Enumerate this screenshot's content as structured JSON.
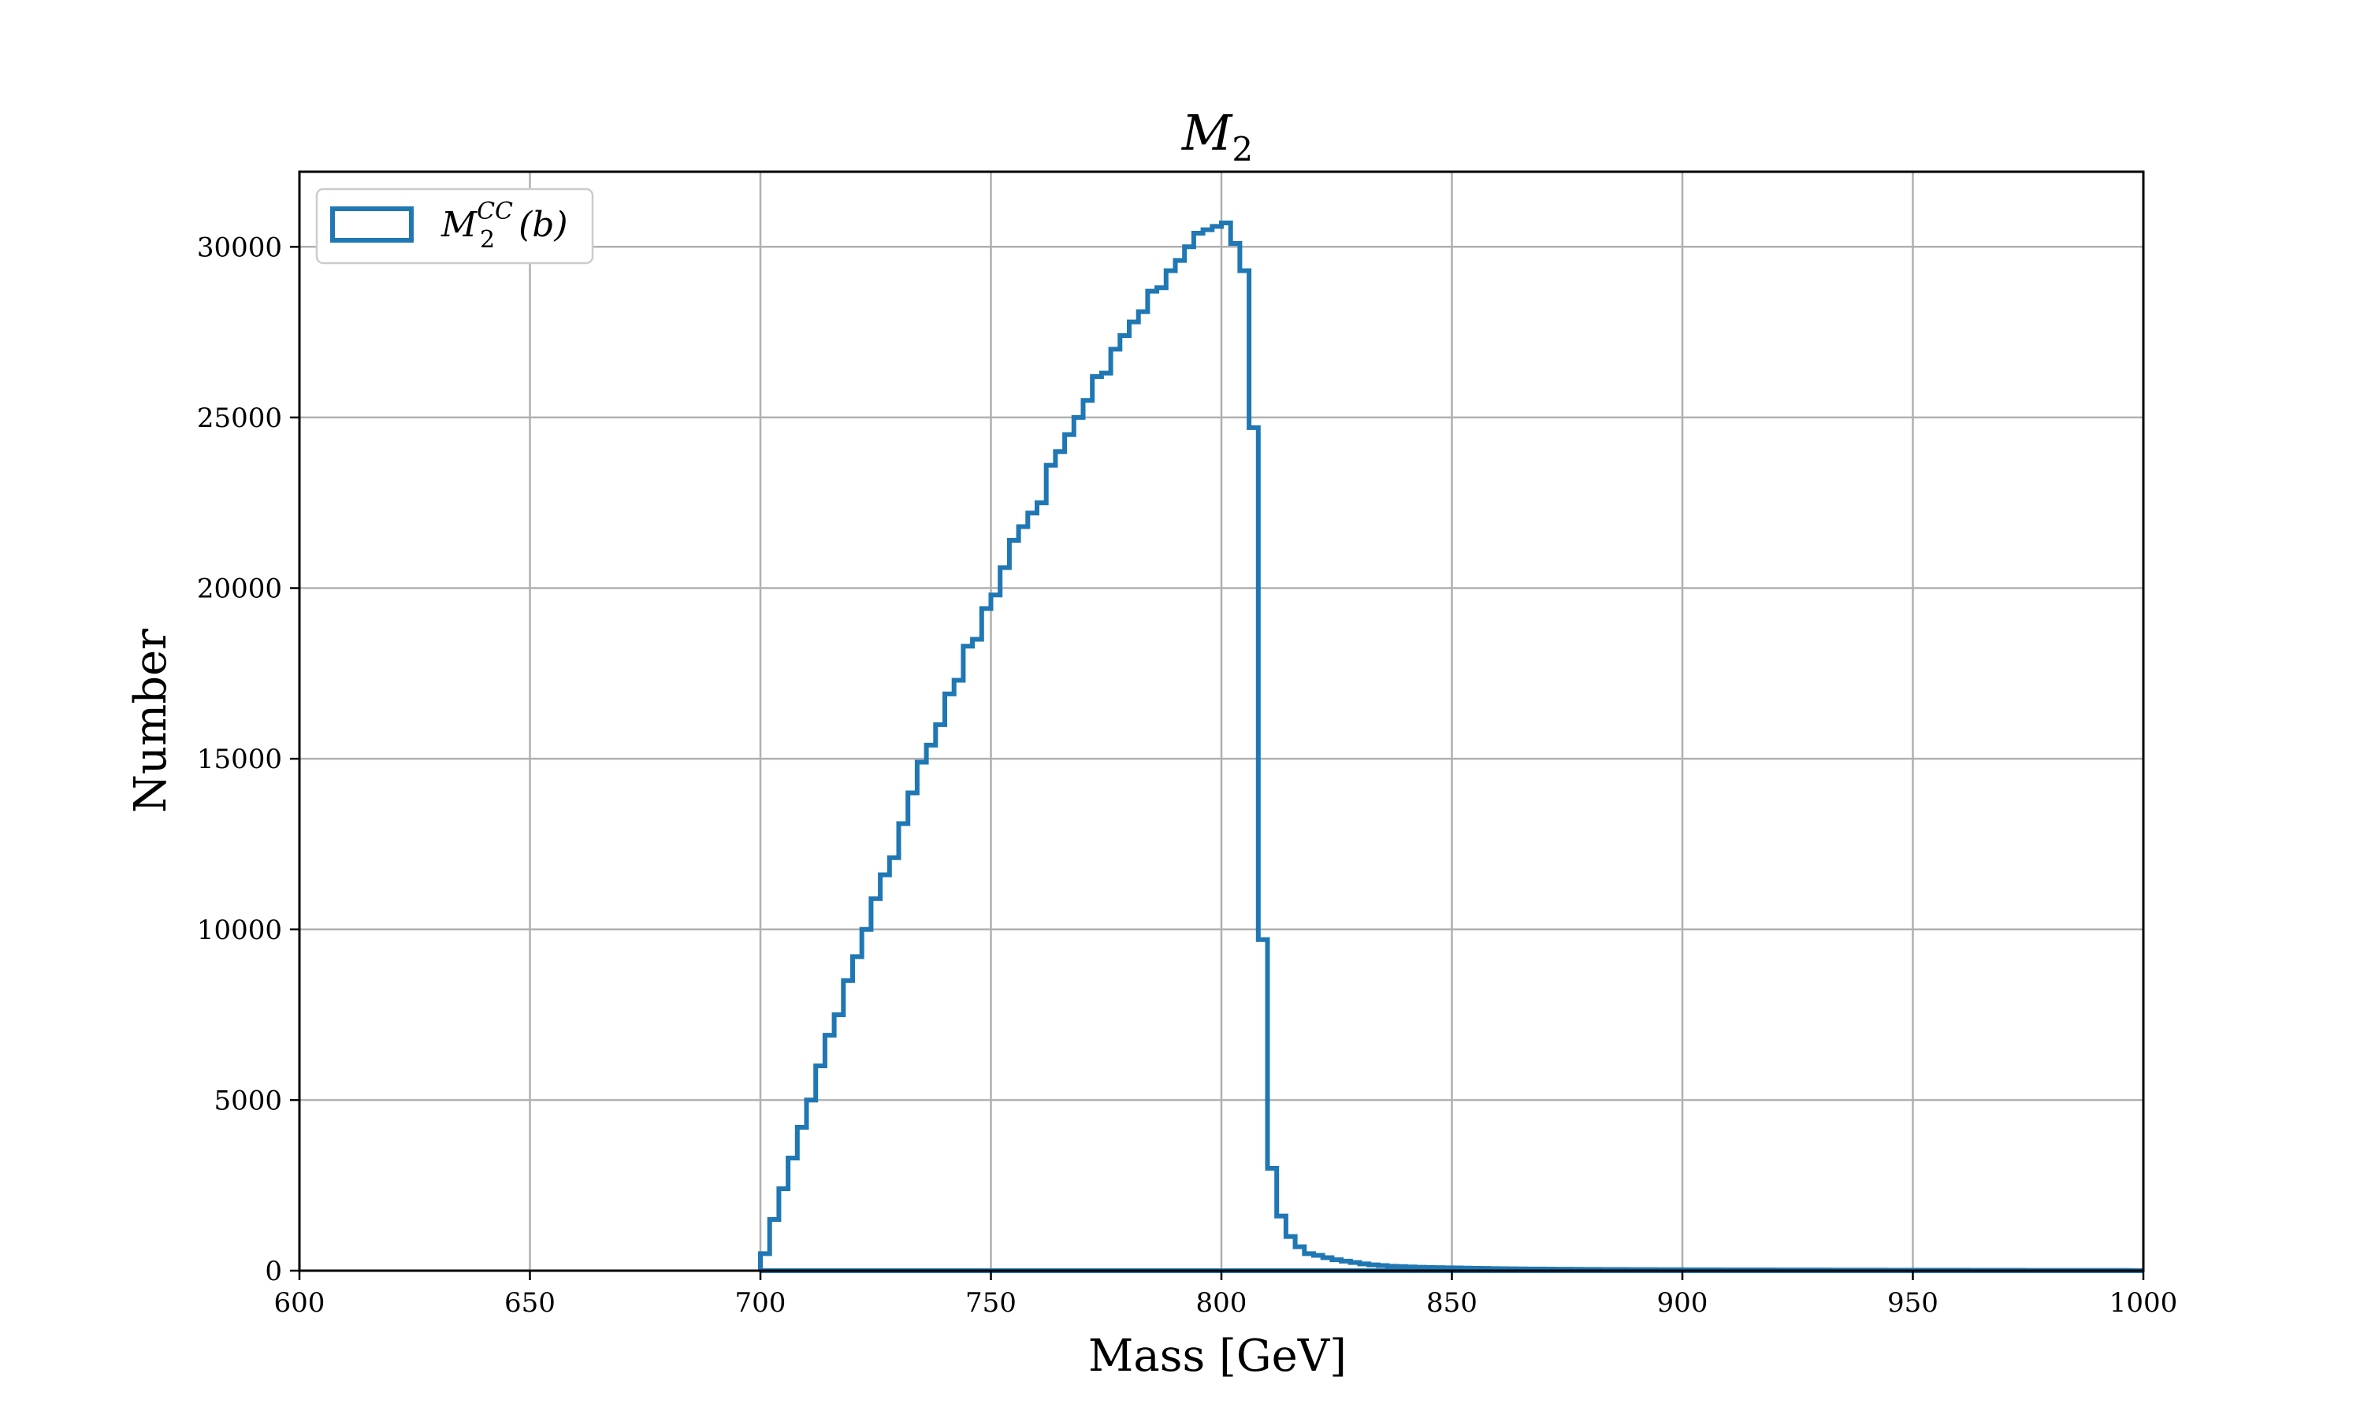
{
  "chart_data": {
    "type": "step",
    "title": "M",
    "title_sub": "2",
    "xlabel": "Mass [GeV]",
    "ylabel": "Number",
    "xlim": [
      600,
      1000
    ],
    "ylim": [
      0,
      32200
    ],
    "xticks": [
      600,
      650,
      700,
      750,
      800,
      850,
      900,
      950,
      1000
    ],
    "yticks": [
      0,
      5000,
      10000,
      15000,
      20000,
      25000,
      30000
    ],
    "grid": true,
    "legend_position": "top-left",
    "series": [
      {
        "name": "M_2^CC(b)",
        "label_main": "M",
        "label_sup": "CC",
        "label_sub": "2",
        "label_tail": "(b)",
        "color": "#1f77b4",
        "bin_width": 2,
        "bin_start": 700,
        "values": [
          500,
          1500,
          2400,
          3300,
          4200,
          5000,
          6000,
          6900,
          7500,
          8500,
          9200,
          10000,
          10900,
          11600,
          12100,
          13100,
          14000,
          14900,
          15400,
          16000,
          16900,
          17300,
          18300,
          18500,
          19400,
          19800,
          20600,
          21400,
          21800,
          22200,
          22500,
          23600,
          24000,
          24500,
          25000,
          25500,
          26200,
          26300,
          27000,
          27400,
          27800,
          28100,
          28700,
          28800,
          29300,
          29600,
          30000,
          30400,
          30500,
          30600,
          30700,
          30100,
          29300,
          24700,
          9700,
          3000,
          1600,
          1000,
          700,
          500,
          450,
          380,
          320,
          280,
          240,
          200,
          170,
          150,
          130,
          120,
          110,
          100,
          95,
          90,
          85,
          80,
          75,
          70,
          65,
          60,
          58,
          55,
          52,
          50,
          48,
          46,
          44,
          42,
          40,
          38,
          37,
          36,
          35,
          34,
          33,
          32,
          31,
          30,
          29,
          28,
          27,
          26,
          25,
          25,
          24,
          24,
          23,
          23,
          22,
          22,
          21,
          21,
          20,
          20,
          19,
          19,
          18,
          18,
          17,
          17,
          16,
          16,
          15,
          15,
          15,
          14,
          14,
          14,
          13,
          13,
          13,
          12,
          12,
          12,
          11,
          11,
          11,
          10,
          10,
          10,
          10,
          9,
          9,
          9,
          9,
          8,
          8,
          8
        ]
      }
    ]
  }
}
